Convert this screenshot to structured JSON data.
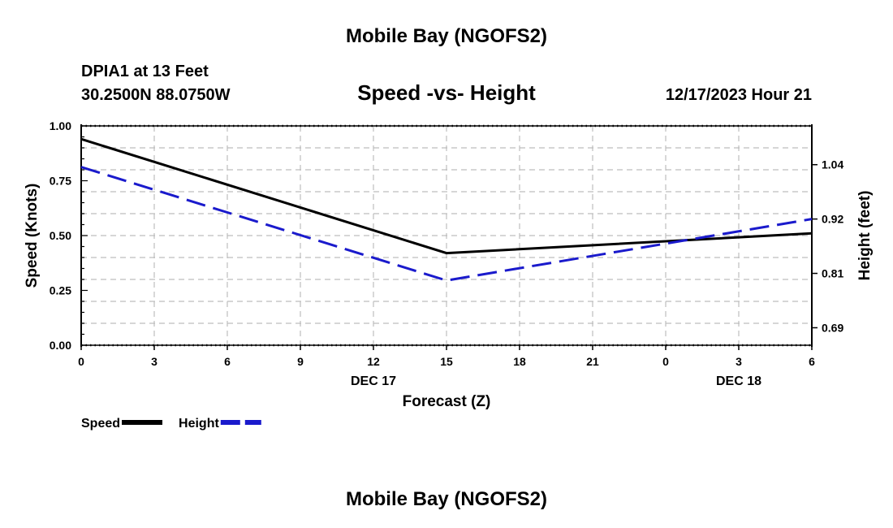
{
  "page": {
    "top_title": "Mobile Bay (NGOFS2)",
    "bottom_title": "Mobile Bay (NGOFS2)",
    "station_line1": "DPIA1 at 13 Feet",
    "station_line2": "30.2500N  88.0750W",
    "subtitle": "Speed -vs- Height",
    "datetime": "12/17/2023 Hour 21"
  },
  "chart_data": {
    "type": "line",
    "title": "Speed -vs- Height",
    "xlabel": "Forecast (Z)",
    "ylabel": "Speed (Knots)",
    "y2label": "Height (feet)",
    "x_ticks": [
      "0",
      "3",
      "6",
      "9",
      "12",
      "15",
      "18",
      "21",
      "0",
      "3",
      "6"
    ],
    "x_ticks_hours": [
      0,
      3,
      6,
      9,
      12,
      15,
      18,
      21,
      24,
      27,
      30
    ],
    "date_labels": [
      {
        "hour": 12,
        "label": "DEC 17"
      },
      {
        "hour": 27,
        "label": "DEC 18"
      }
    ],
    "xlim": [
      0,
      30
    ],
    "ylim": [
      0,
      1
    ],
    "y_ticks": [
      "0.00",
      "0.25",
      "0.50",
      "0.75",
      "1.00"
    ],
    "y_ticks_values": [
      0,
      0.25,
      0.5,
      0.75,
      1.0
    ],
    "y2lim": [
      0.653,
      1.117
    ],
    "y2_ticks": [
      "0.69",
      "0.81",
      "0.92",
      "1.04"
    ],
    "y2_ticks_values": [
      0.69,
      0.805,
      0.92,
      1.035
    ],
    "grid": true,
    "series": [
      {
        "name": "Speed",
        "axis": "left",
        "color": "#000000",
        "style": "solid",
        "x": [
          0,
          15,
          30
        ],
        "values": [
          0.94,
          0.42,
          0.51
        ]
      },
      {
        "name": "Height",
        "axis": "right",
        "color": "#1a1acc",
        "style": "dashed",
        "x": [
          0,
          15,
          30
        ],
        "values": [
          1.03,
          0.79,
          0.92
        ]
      }
    ],
    "legend": [
      {
        "label": "Speed",
        "color": "#000000",
        "style": "solid"
      },
      {
        "label": "Height",
        "color": "#1a1acc",
        "style": "dashed"
      }
    ]
  }
}
